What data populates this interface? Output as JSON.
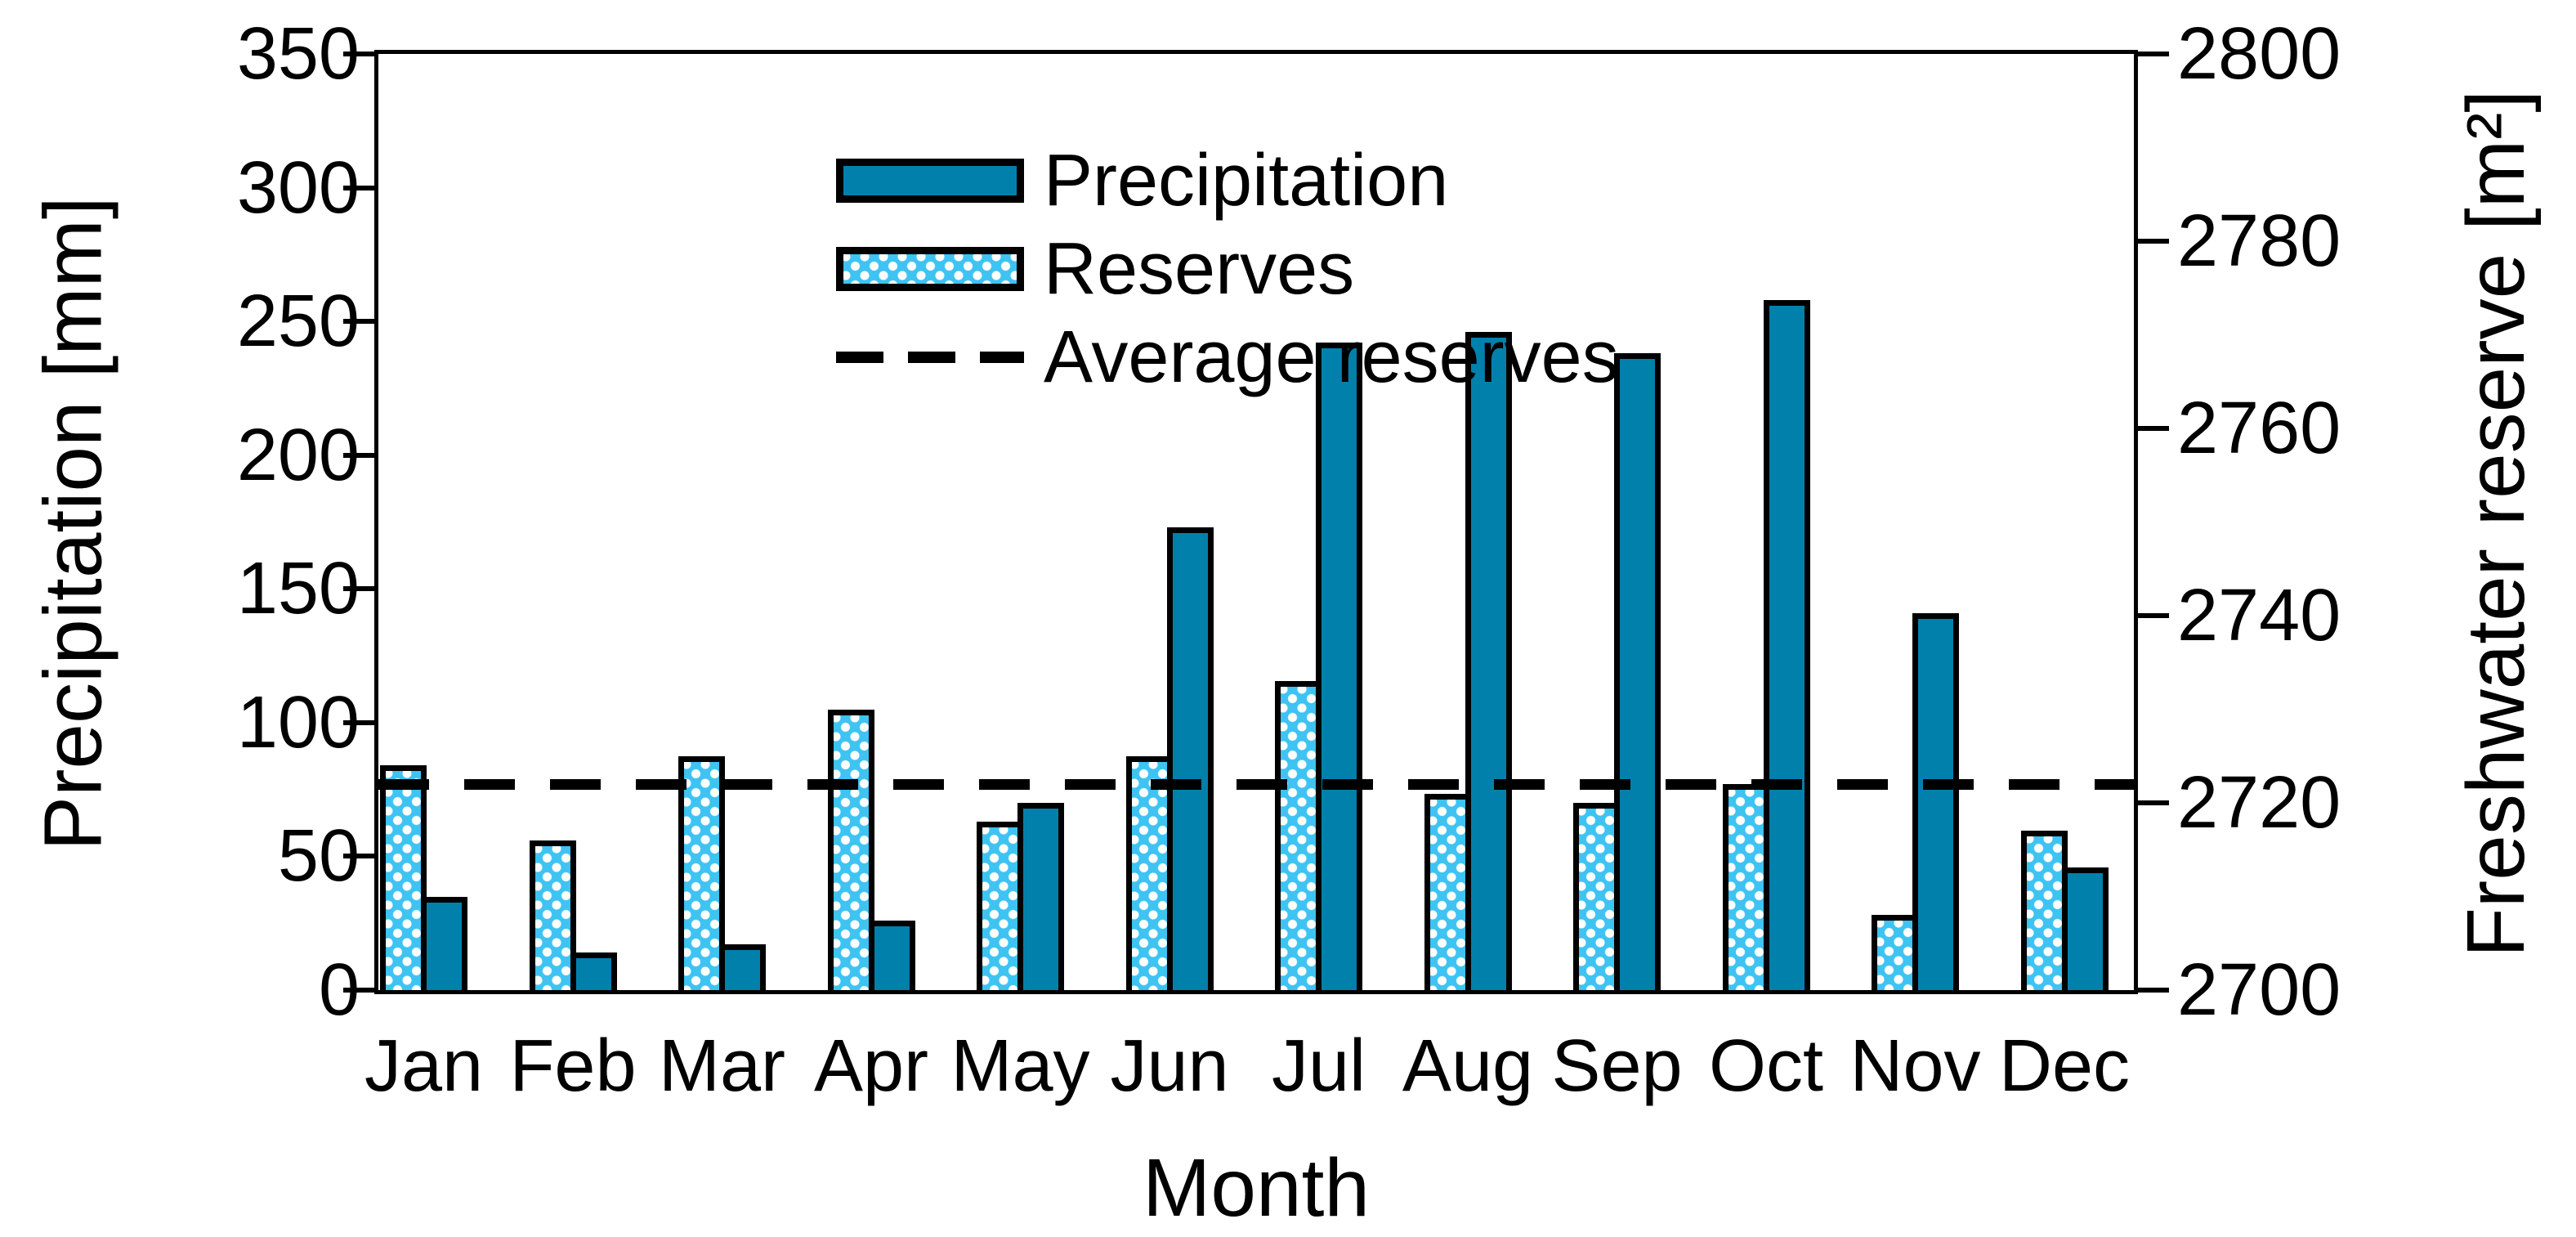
{
  "figure": {
    "background": "#ffffff",
    "text_color": "#000000",
    "bar_border_color": "#000000"
  },
  "chart_data": {
    "type": "bar",
    "categories": [
      "Jan",
      "Feb",
      "Mar",
      "Apr",
      "May",
      "Jun",
      "Jul",
      "Aug",
      "Sep",
      "Oct",
      "Nov",
      "Dec"
    ],
    "xlabel": "Month",
    "left_axis": {
      "label": "Precipitation [mm]",
      "min": 0,
      "max": 350,
      "tick_step": 50,
      "ticks": [
        0,
        50,
        100,
        150,
        200,
        250,
        300,
        350
      ]
    },
    "right_axis": {
      "label": "Freshwater reserve [m²]",
      "min": 2700,
      "max": 2800,
      "tick_step": 20,
      "ticks": [
        2700,
        2720,
        2740,
        2760,
        2780,
        2800
      ]
    },
    "series": [
      {
        "name": "Precipitation",
        "type": "bar",
        "axis": "left",
        "unit": "mm",
        "fill": "solid",
        "color": "#0280AC",
        "values": [
          35,
          14,
          17,
          26,
          70,
          173,
          242,
          246,
          238,
          258,
          141,
          46
        ]
      },
      {
        "name": "Reserves",
        "type": "bar",
        "axis": "right",
        "unit": "m²",
        "fill": "dotted-pattern",
        "color": "#3EC3F2",
        "values": [
          2724,
          2716,
          2725,
          2730,
          2718,
          2725,
          2733,
          2721,
          2720,
          2722,
          2708,
          2717
        ]
      },
      {
        "name": "Average reserves",
        "type": "dashed_horizontal_line",
        "axis": "right",
        "color": "#000000",
        "value": 2722
      }
    ],
    "grid": false,
    "legend_position": "top-left-inside"
  }
}
